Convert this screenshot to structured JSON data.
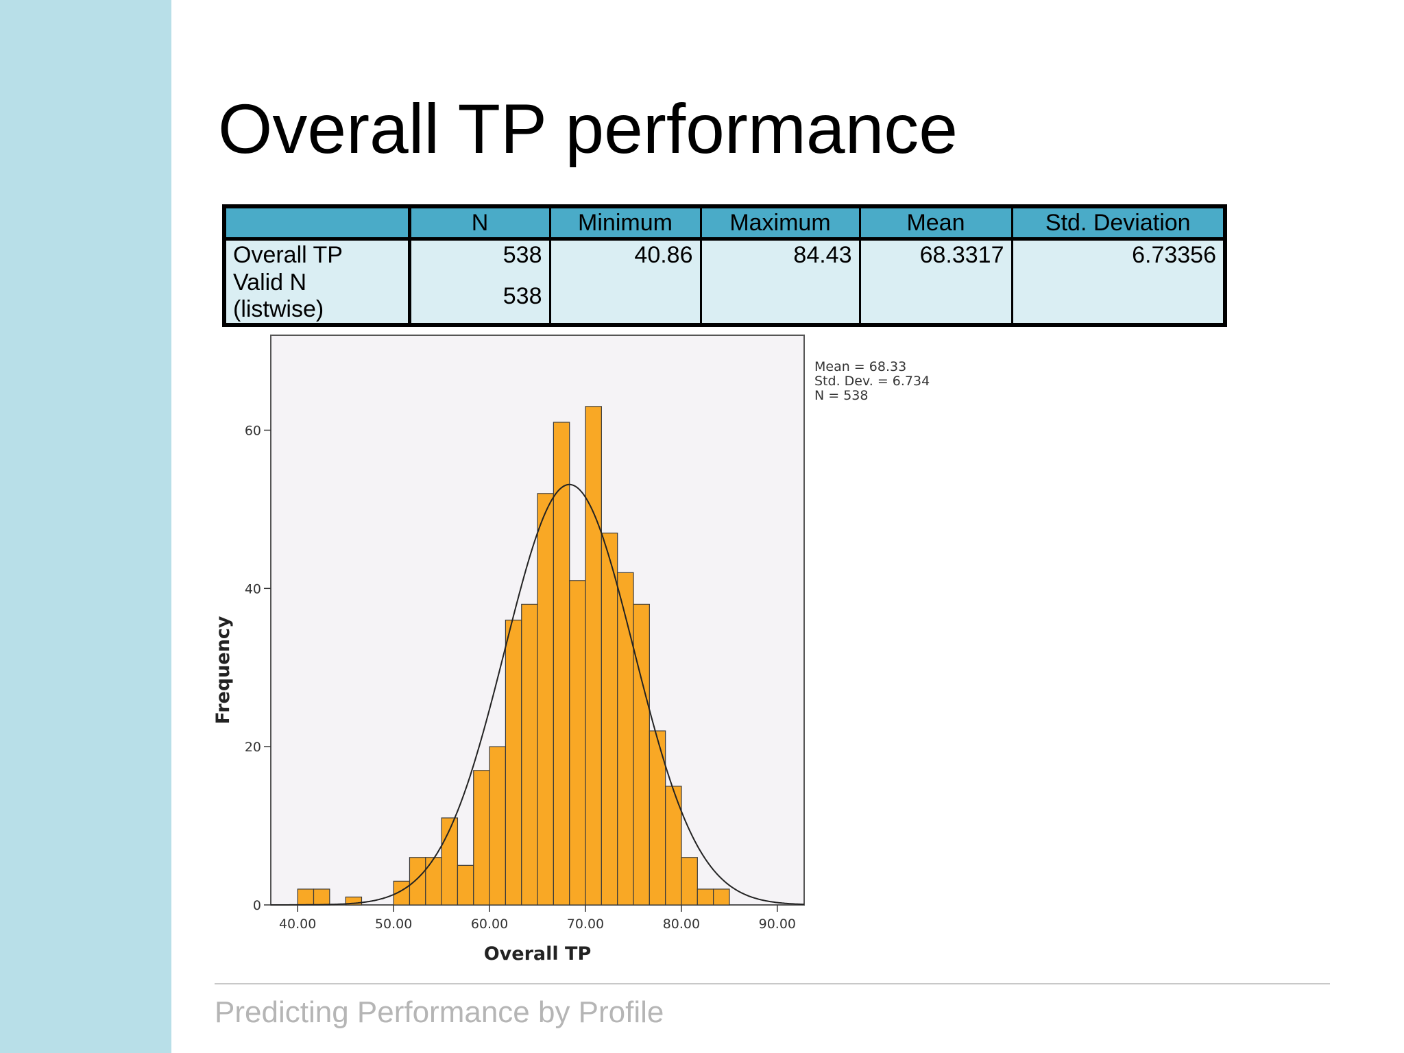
{
  "slide": {
    "title": "Overall TP performance",
    "footer": "Predicting Performance by Profile"
  },
  "stats_table": {
    "headers": [
      "",
      "N",
      "Minimum",
      "Maximum",
      "Mean",
      "Std. Deviation"
    ],
    "rows": [
      {
        "label": "Overall TP",
        "n": "538",
        "minimum": "40.86",
        "maximum": "84.43",
        "mean": "68.3317",
        "std": "6.73356"
      },
      {
        "label": "Valid N (listwise)",
        "n": "538",
        "minimum": "",
        "maximum": "",
        "mean": "",
        "std": ""
      }
    ]
  },
  "colors": {
    "sidebar": "#b8dfe8",
    "table_header": "#4aabc8",
    "table_body": "#daeef3",
    "bar_fill": "#f9a825",
    "plot_bg": "#f5f3f6"
  },
  "chart_data": {
    "type": "bar",
    "xlabel": "Overall TP",
    "ylabel": "Frequency",
    "xlim": [
      37.2,
      92.8
    ],
    "ylim": [
      0,
      72
    ],
    "x_ticks": [
      40,
      50,
      60,
      70,
      80,
      90
    ],
    "x_tick_labels": [
      "40.00",
      "50.00",
      "60.00",
      "70.00",
      "80.00",
      "90.00"
    ],
    "y_ticks": [
      0,
      20,
      40,
      60
    ],
    "y_tick_labels": [
      "0",
      "20",
      "40",
      "60"
    ],
    "bin_width": 1.667,
    "bin_edges_start": 40.0,
    "values": [
      2,
      2,
      0,
      1,
      0,
      0,
      3,
      6,
      6,
      11,
      5,
      17,
      20,
      36,
      38,
      52,
      61,
      41,
      63,
      47,
      42,
      38,
      22,
      15,
      6,
      2,
      2
    ],
    "normal_curve": {
      "mean": 68.33,
      "std": 6.734,
      "n": 538
    },
    "legend": [
      "Mean = 68.33",
      "Std. Dev. = 6.734",
      "N = 538"
    ],
    "legend_position": "top-right",
    "grid": false
  }
}
